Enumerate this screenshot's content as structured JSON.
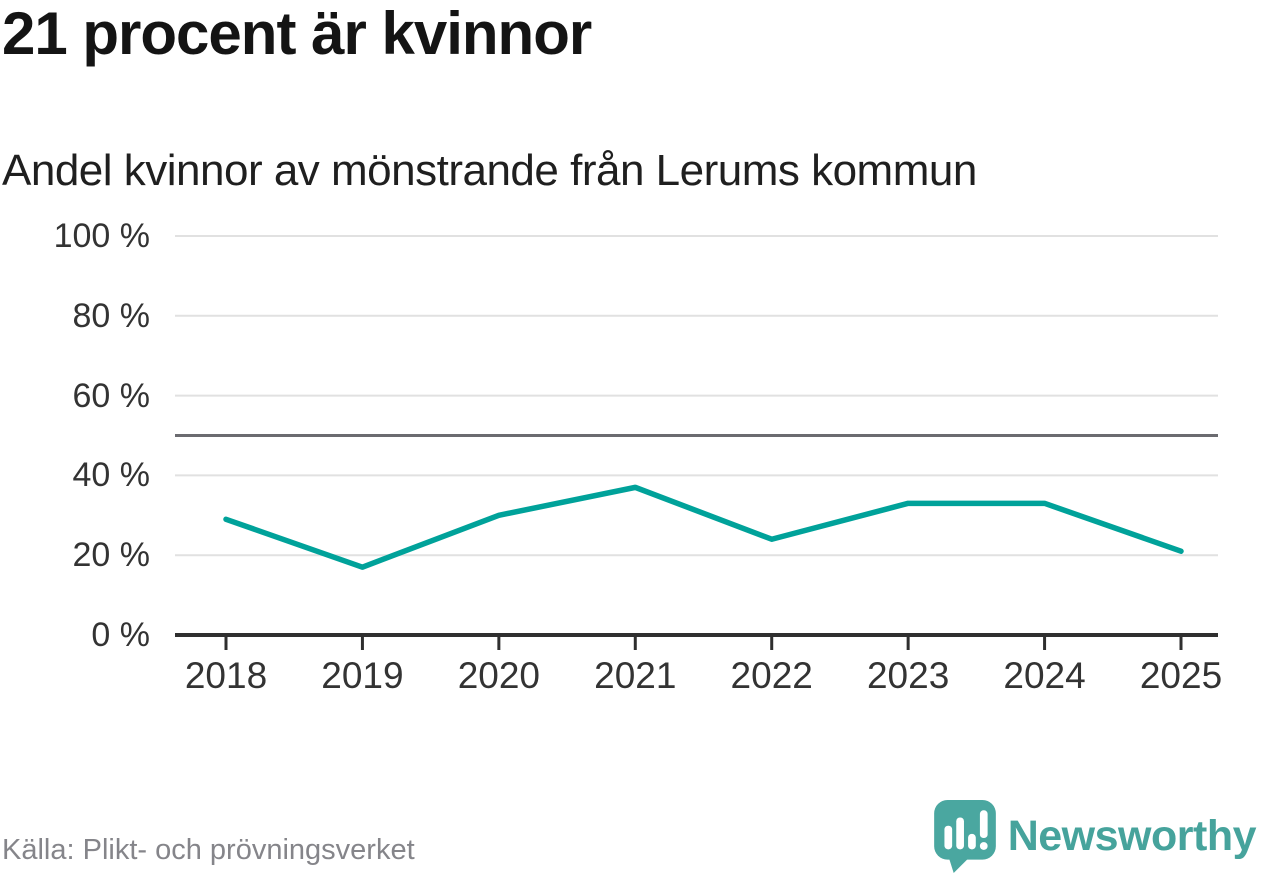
{
  "header": {
    "title": "21 procent är kvinnor",
    "subtitle": "Andel kvinnor av mönstrande från Lerums kommun"
  },
  "chart_data": {
    "type": "line",
    "title": "21 procent är kvinnor",
    "subtitle": "Andel kvinnor av mönstrande från Lerums kommun",
    "categories": [
      "2018",
      "2019",
      "2020",
      "2021",
      "2022",
      "2023",
      "2024",
      "2025"
    ],
    "series": [
      {
        "name": "Andel kvinnor av mönstrande",
        "values": [
          29,
          17,
          30,
          37,
          24,
          33,
          33,
          21
        ],
        "color": "#00a29a"
      }
    ],
    "unit": "%",
    "ylabel": "",
    "xlabel": "",
    "ylim": [
      0,
      100
    ],
    "y_ticks": [
      0,
      20,
      40,
      60,
      80,
      100
    ],
    "y_tick_labels": [
      "0 %",
      "20 %",
      "40 %",
      "60 %",
      "80 %",
      "100 %"
    ],
    "reference_line": {
      "value": 50,
      "color": "#6b6b70"
    },
    "grid": true,
    "legend_position": "none"
  },
  "footer": {
    "source": "Källa: Plikt- och prövningsverket",
    "brand": "Newsworthy"
  },
  "colors": {
    "line": "#00a29a",
    "grid": "#e1e1e1",
    "axis": "#2f2f2f",
    "reference": "#6b6b70",
    "brand_teal": "#46a39c",
    "logo_bubble": "#4aa7a0",
    "text_dark": "#141414",
    "text_muted": "#85858a",
    "tick_text": "#333333"
  }
}
